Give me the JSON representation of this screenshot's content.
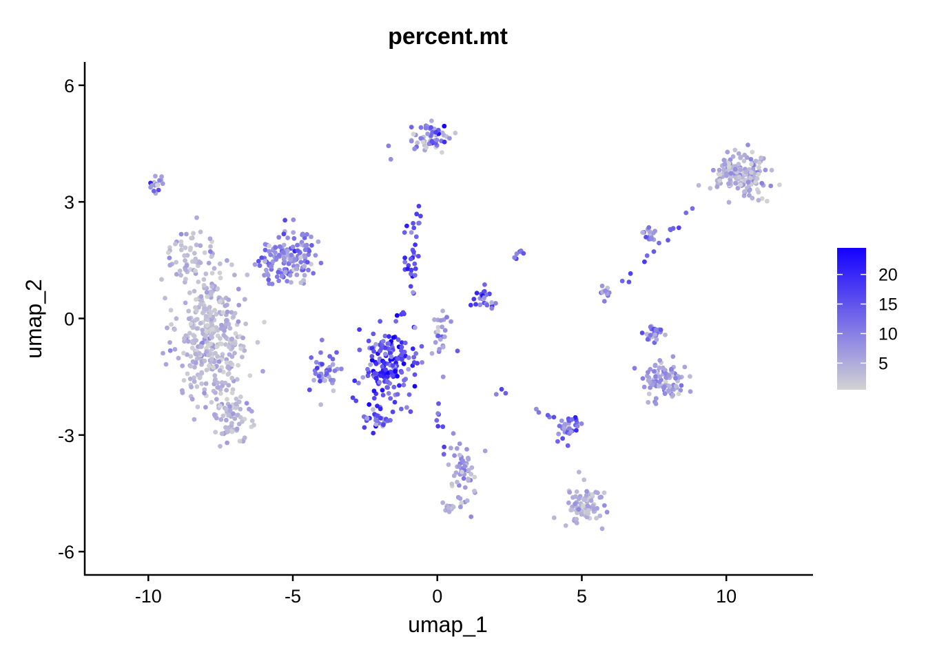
{
  "chart_data": {
    "type": "scatter",
    "title": "percent.mt",
    "xlabel": "umap_1",
    "ylabel": "umap_2",
    "xlim": [
      -12.2,
      13.0
    ],
    "ylim": [
      -6.6,
      6.6
    ],
    "x_ticks": [
      -10,
      -5,
      0,
      5,
      10
    ],
    "x_tick_labels": [
      "-10",
      "-5",
      "0",
      "5",
      "10"
    ],
    "y_ticks": [
      -6,
      -3,
      0,
      3,
      6
    ],
    "y_tick_labels": [
      "-6",
      "-3",
      "0",
      "3",
      "6"
    ],
    "grid": false,
    "legend": {
      "placement": "right",
      "type": "continuous colorbar",
      "min": 0.5,
      "max": 24.5,
      "ticks": [
        5,
        10,
        15,
        20
      ],
      "tick_labels": [
        "5",
        "10",
        "15",
        "20"
      ],
      "low_color": "#d3d3d3",
      "high_color": "#1500ff"
    },
    "clusters": [
      {
        "center": [
          -7.8,
          -0.5
        ],
        "spread": [
          1.0,
          1.6
        ],
        "n": 380,
        "value_mean": 3.5,
        "value_sd": 2.2
      },
      {
        "center": [
          -7.0,
          -2.6
        ],
        "spread": [
          0.6,
          0.5
        ],
        "n": 60,
        "value_mean": 3.0,
        "value_sd": 2.0
      },
      {
        "center": [
          -8.5,
          1.6
        ],
        "spread": [
          0.7,
          0.6
        ],
        "n": 50,
        "value_mean": 4.0,
        "value_sd": 2.0
      },
      {
        "center": [
          -5.2,
          1.6
        ],
        "spread": [
          0.8,
          0.6
        ],
        "n": 150,
        "value_mean": 9.0,
        "value_sd": 4.0
      },
      {
        "center": [
          -9.7,
          3.4
        ],
        "spread": [
          0.2,
          0.15
        ],
        "n": 18,
        "value_mean": 9.0,
        "value_sd": 5.0
      },
      {
        "center": [
          -1.7,
          -1.2
        ],
        "spread": [
          0.75,
          0.9
        ],
        "n": 170,
        "value_mean": 17.0,
        "value_sd": 5.0
      },
      {
        "center": [
          -2.1,
          -2.6
        ],
        "spread": [
          0.4,
          0.3
        ],
        "n": 30,
        "value_mean": 12.0,
        "value_sd": 5.0
      },
      {
        "center": [
          -3.9,
          -1.4
        ],
        "spread": [
          0.45,
          0.45
        ],
        "n": 40,
        "value_mean": 10.0,
        "value_sd": 4.0
      },
      {
        "center": [
          0.1,
          -0.4
        ],
        "spread": [
          0.3,
          0.6
        ],
        "n": 25,
        "value_mean": 7.0,
        "value_sd": 4.0
      },
      {
        "center": [
          -0.9,
          1.6
        ],
        "spread": [
          0.25,
          0.8
        ],
        "n": 22,
        "value_mean": 14.0,
        "value_sd": 5.0
      },
      {
        "center": [
          1.6,
          0.5
        ],
        "spread": [
          0.35,
          0.25
        ],
        "n": 25,
        "value_mean": 15.0,
        "value_sd": 5.0
      },
      {
        "center": [
          -0.2,
          4.6
        ],
        "spread": [
          0.6,
          0.3
        ],
        "n": 60,
        "value_mean": 9.0,
        "value_sd": 5.0
      },
      {
        "center": [
          0.9,
          -4.0
        ],
        "spread": [
          0.4,
          0.7
        ],
        "n": 55,
        "value_mean": 7.0,
        "value_sd": 3.0
      },
      {
        "center": [
          0.4,
          -4.9
        ],
        "spread": [
          0.2,
          0.1
        ],
        "n": 15,
        "value_mean": 4.0,
        "value_sd": 2.0
      },
      {
        "center": [
          4.5,
          -2.8
        ],
        "spread": [
          0.35,
          0.35
        ],
        "n": 35,
        "value_mean": 12.0,
        "value_sd": 5.0
      },
      {
        "center": [
          5.1,
          -4.8
        ],
        "spread": [
          0.55,
          0.55
        ],
        "n": 85,
        "value_mean": 4.0,
        "value_sd": 2.5
      },
      {
        "center": [
          7.3,
          2.2
        ],
        "spread": [
          0.2,
          0.2
        ],
        "n": 15,
        "value_mean": 10.0,
        "value_sd": 4.0
      },
      {
        "center": [
          5.8,
          0.6
        ],
        "spread": [
          0.15,
          0.25
        ],
        "n": 12,
        "value_mean": 6.0,
        "value_sd": 3.0
      },
      {
        "center": [
          7.5,
          -0.4
        ],
        "spread": [
          0.4,
          0.3
        ],
        "n": 25,
        "value_mean": 9.0,
        "value_sd": 4.0
      },
      {
        "center": [
          7.8,
          -1.6
        ],
        "spread": [
          0.6,
          0.4
        ],
        "n": 90,
        "value_mean": 6.0,
        "value_sd": 3.5
      },
      {
        "center": [
          10.5,
          3.7
        ],
        "spread": [
          0.8,
          0.45
        ],
        "n": 170,
        "value_mean": 4.5,
        "value_sd": 3.0
      }
    ],
    "bridges": [
      {
        "from": [
          -0.6,
          2.9
        ],
        "to": [
          -1.2,
          -0.2
        ],
        "n": 12
      },
      {
        "from": [
          2.3,
          1.3
        ],
        "to": [
          3.1,
          1.9
        ],
        "n": 8
      },
      {
        "from": [
          6.3,
          0.8
        ],
        "to": [
          9.0,
          3.0
        ],
        "n": 14
      },
      {
        "from": [
          0.0,
          -2.2
        ],
        "to": [
          0.2,
          -3.6
        ],
        "n": 8
      },
      {
        "from": [
          3.4,
          -2.4
        ],
        "to": [
          4.2,
          -2.6
        ],
        "n": 5
      },
      {
        "from": [
          2.5,
          -1.9
        ],
        "to": [
          2.0,
          -2.0
        ],
        "n": 3
      }
    ]
  }
}
